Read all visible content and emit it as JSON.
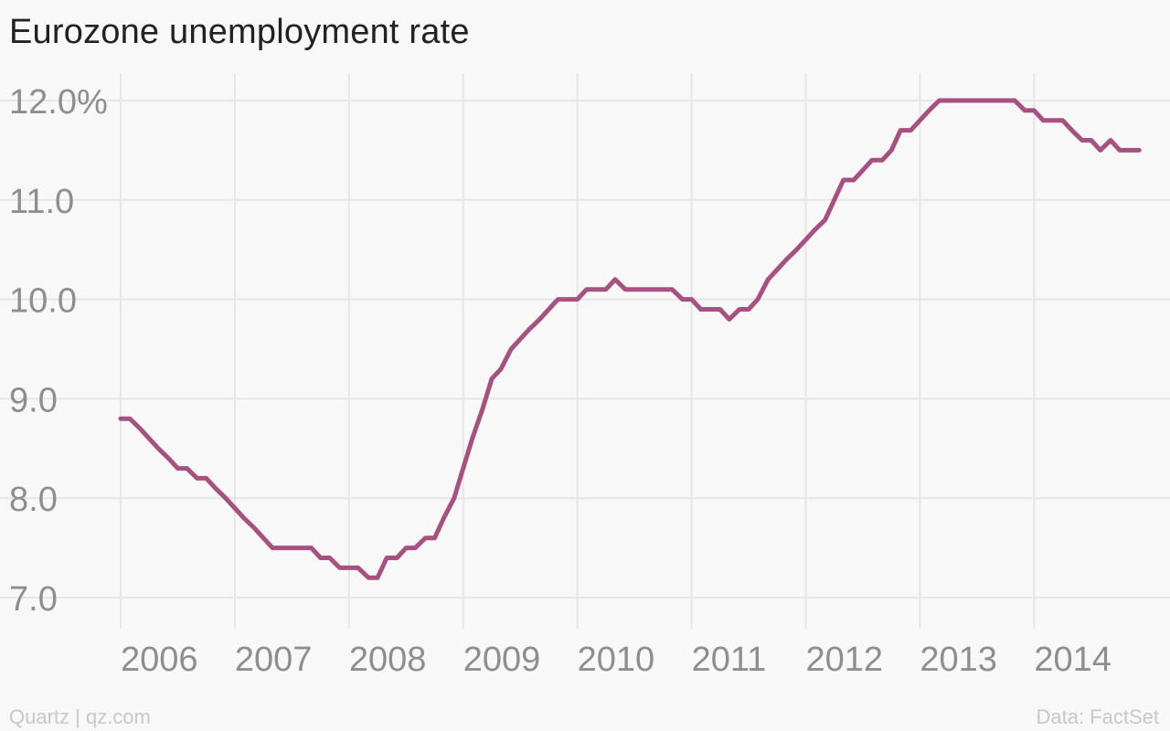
{
  "chart_data": {
    "type": "line",
    "title": "Eurozone unemployment rate",
    "xlabel": "",
    "ylabel": "",
    "ylim": [
      7.0,
      12.0
    ],
    "xlim": [
      2006.0,
      2014.95
    ],
    "y_ticks": [
      {
        "value": 12.0,
        "label": "12.0%"
      },
      {
        "value": 11.0,
        "label": "11.0"
      },
      {
        "value": 10.0,
        "label": "10.0"
      },
      {
        "value": 9.0,
        "label": "9.0"
      },
      {
        "value": 8.0,
        "label": "8.0"
      },
      {
        "value": 7.0,
        "label": "7.0"
      }
    ],
    "x_ticks": [
      {
        "value": 2006,
        "label": "2006"
      },
      {
        "value": 2007,
        "label": "2007"
      },
      {
        "value": 2008,
        "label": "2008"
      },
      {
        "value": 2009,
        "label": "2009"
      },
      {
        "value": 2010,
        "label": "2010"
      },
      {
        "value": 2011,
        "label": "2011"
      },
      {
        "value": 2012,
        "label": "2012"
      },
      {
        "value": 2013,
        "label": "2013"
      },
      {
        "value": 2014,
        "label": "2014"
      }
    ],
    "grid": true,
    "legend": "none",
    "series": [
      {
        "color": "#a6517f",
        "x": [
          2006.0,
          2006.08,
          2006.17,
          2006.25,
          2006.33,
          2006.42,
          2006.5,
          2006.58,
          2006.67,
          2006.75,
          2006.83,
          2006.92,
          2007.0,
          2007.08,
          2007.17,
          2007.25,
          2007.33,
          2007.42,
          2007.5,
          2007.58,
          2007.67,
          2007.75,
          2007.83,
          2007.92,
          2008.0,
          2008.08,
          2008.17,
          2008.25,
          2008.33,
          2008.42,
          2008.5,
          2008.58,
          2008.67,
          2008.75,
          2008.83,
          2008.92,
          2009.0,
          2009.08,
          2009.17,
          2009.25,
          2009.33,
          2009.42,
          2009.5,
          2009.58,
          2009.67,
          2009.75,
          2009.83,
          2009.92,
          2010.0,
          2010.08,
          2010.17,
          2010.25,
          2010.33,
          2010.42,
          2010.5,
          2010.58,
          2010.67,
          2010.75,
          2010.83,
          2010.92,
          2011.0,
          2011.08,
          2011.17,
          2011.25,
          2011.33,
          2011.42,
          2011.5,
          2011.58,
          2011.67,
          2011.75,
          2011.83,
          2011.92,
          2012.0,
          2012.08,
          2012.17,
          2012.25,
          2012.33,
          2012.42,
          2012.5,
          2012.58,
          2012.67,
          2012.75,
          2012.83,
          2012.92,
          2013.0,
          2013.08,
          2013.17,
          2013.25,
          2013.33,
          2013.42,
          2013.5,
          2013.58,
          2013.67,
          2013.75,
          2013.83,
          2013.92,
          2014.0,
          2014.08,
          2014.17,
          2014.25,
          2014.33,
          2014.42,
          2014.5,
          2014.58,
          2014.67,
          2014.75,
          2014.83,
          2014.92
        ],
        "y": [
          8.8,
          8.8,
          8.7,
          8.6,
          8.5,
          8.4,
          8.3,
          8.3,
          8.2,
          8.2,
          8.1,
          8.0,
          7.9,
          7.8,
          7.7,
          7.6,
          7.5,
          7.5,
          7.5,
          7.5,
          7.5,
          7.4,
          7.4,
          7.3,
          7.3,
          7.3,
          7.2,
          7.2,
          7.4,
          7.4,
          7.5,
          7.5,
          7.6,
          7.6,
          7.8,
          8.0,
          8.3,
          8.6,
          8.9,
          9.2,
          9.3,
          9.5,
          9.6,
          9.7,
          9.8,
          9.9,
          10.0,
          10.0,
          10.0,
          10.1,
          10.1,
          10.1,
          10.2,
          10.1,
          10.1,
          10.1,
          10.1,
          10.1,
          10.1,
          10.0,
          10.0,
          9.9,
          9.9,
          9.9,
          9.8,
          9.9,
          9.9,
          10.0,
          10.2,
          10.3,
          10.4,
          10.5,
          10.6,
          10.7,
          10.8,
          11.0,
          11.2,
          11.2,
          11.3,
          11.4,
          11.4,
          11.5,
          11.7,
          11.7,
          11.8,
          11.9,
          12.0,
          12.0,
          12.0,
          12.0,
          12.0,
          12.0,
          12.0,
          12.0,
          12.0,
          11.9,
          11.9,
          11.8,
          11.8,
          11.8,
          11.7,
          11.6,
          11.6,
          11.5,
          11.6,
          11.5,
          11.5,
          11.5
        ]
      }
    ]
  },
  "footer": {
    "source_left": "Quartz | qz.com",
    "source_right": "Data: FactSet"
  },
  "colors": {
    "background": "#f8f8f8",
    "grid": "#e6e6e6",
    "line": "#a6517f",
    "tick_text": "#8e8e8e",
    "title_text": "#222222",
    "footer_text": "#c8c8c8"
  }
}
